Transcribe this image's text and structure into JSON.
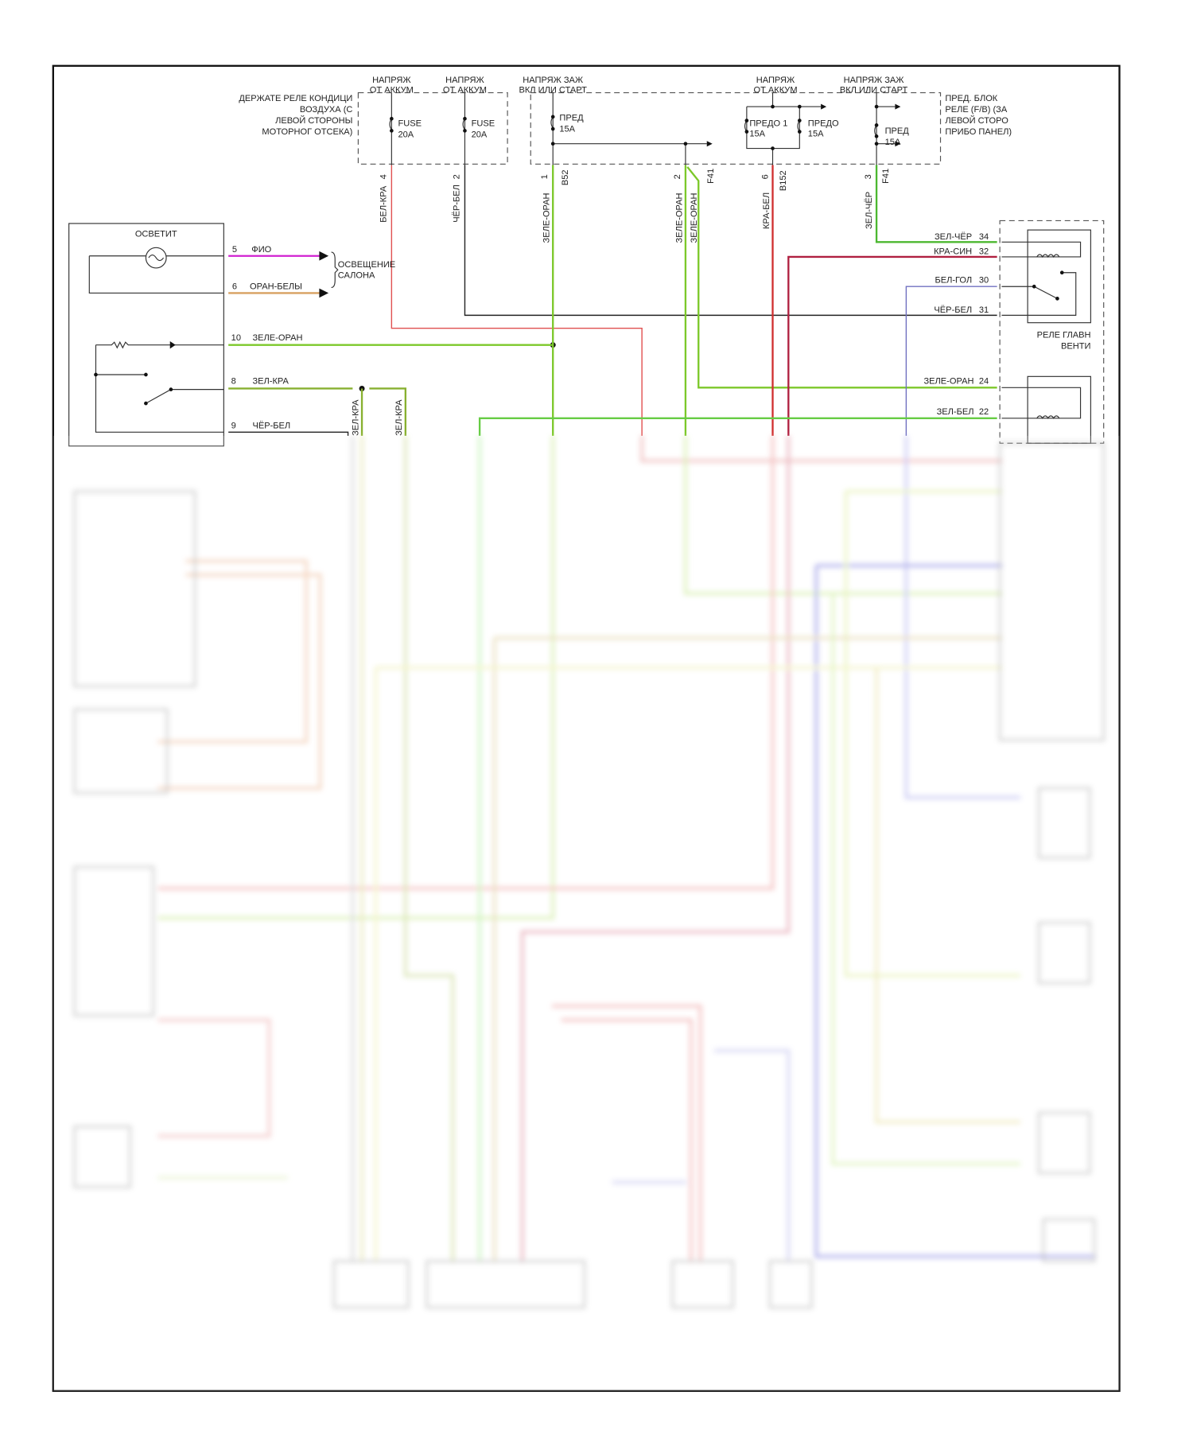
{
  "power_boxes": {
    "left_box_label": [
      "ДЕРЖАТЕ РЕЛЕ КОНДИЦИ",
      "ВОЗДУХА (С",
      "ЛЕВОЙ СТОРОНЫ",
      "МОТОРНОГ ОТСЕКА)"
    ],
    "right_box_label": [
      "ПРЕД. БЛОК",
      "РЕЛЕ (F/B) (ЗА",
      "ЛЕВОЙ СТОРО",
      "ПРИБО ПАНЕЛ)"
    ],
    "sources": [
      {
        "line1": "НАПРЯЖ",
        "line2": "ОТ АККУМ"
      },
      {
        "line1": "НАПРЯЖ",
        "line2": "ОТ АККУМ"
      },
      {
        "line1": "НАПРЯЖ ЗАЖ",
        "line2": "ВКЛ ИЛИ СТАРТ"
      },
      {
        "line1": "НАПРЯЖ",
        "line2": "ОТ АККУМ"
      },
      {
        "line1": "НАПРЯЖ ЗАЖ",
        "line2": "ВКЛ ИЛИ СТАРТ"
      }
    ],
    "fuses": [
      {
        "name": "FUSE",
        "rating": "20A"
      },
      {
        "name": "FUSE",
        "rating": "20A"
      },
      {
        "name": "ПРЕД",
        "rating": "15A"
      },
      {
        "name": "ПРЕДО 1",
        "rating": "15A"
      },
      {
        "name": "ПРЕДО",
        "rating": "15A"
      },
      {
        "name": "ПРЕД",
        "rating": "15A"
      }
    ]
  },
  "top_wires": [
    {
      "pin": "4",
      "connector": "",
      "color_name": "БЕЛ-КРА",
      "color": "#e05050"
    },
    {
      "pin": "2",
      "connector": "",
      "color_name": "ЧЁР-БЕЛ",
      "color": "#222222"
    },
    {
      "pin": "1",
      "connector": "B52",
      "color_name": "ЗЕЛЕ-ОРАН",
      "color": "#7cc82a"
    },
    {
      "pin": "2",
      "connector": "F41",
      "color_name": "ЗЕЛЕ-ОРАН",
      "color": "#7cc82a"
    },
    {
      "pin": "",
      "connector": "",
      "color_name": "ЗЕЛЕ-ОРАН",
      "color": "#7cc82a"
    },
    {
      "pin": "6",
      "connector": "B152",
      "color_name": "КРА-БЕЛ",
      "color": "#d03030"
    },
    {
      "pin": "3",
      "connector": "F41",
      "color_name": "ЗЕЛ-ЧЁР",
      "color": "#4cb830"
    }
  ],
  "switch_component": {
    "lamp_label": "ОСВЕТИТ",
    "interior_light_label": [
      "ОСВЕЩЕНИЕ",
      "САЛОНА"
    ],
    "pins": [
      {
        "pin": "5",
        "wire": "ФИО",
        "color": "#d020d0"
      },
      {
        "pin": "6",
        "wire": "ОРАН-БЕЛЫ",
        "color": "#d8a060"
      },
      {
        "pin": "10",
        "wire": "ЗЕЛЕ-ОРАН",
        "color": "#7cc82a"
      },
      {
        "pin": "8",
        "wire": "ЗЕЛ-КРА",
        "color": "#88b030"
      },
      {
        "pin": "9",
        "wire": "ЧЁР-БЕЛ",
        "color": "#222222"
      }
    ],
    "down_wire_labels": [
      "ЗЕЛ-КРА",
      "ЗЕЛ-КРА"
    ]
  },
  "relay_block": {
    "main_fan_relay_label": [
      "РЕЛЕ ГЛАВН",
      "ВЕНТИ"
    ],
    "pins": [
      {
        "pin": "34",
        "wire": "ЗЕЛ-ЧЁР",
        "color": "#4cb830"
      },
      {
        "pin": "32",
        "wire": "КРА-СИН",
        "color": "#b02040"
      },
      {
        "pin": "30",
        "wire": "БЕЛ-ГОЛ",
        "color": "#7070c0"
      },
      {
        "pin": "31",
        "wire": "ЧЁР-БЕЛ",
        "color": "#222222"
      },
      {
        "pin": "24",
        "wire": "ЗЕЛЕ-ОРАН",
        "color": "#7cc82a"
      },
      {
        "pin": "22",
        "wire": "ЗЕЛ-БЕЛ",
        "color": "#66cc44"
      }
    ]
  }
}
